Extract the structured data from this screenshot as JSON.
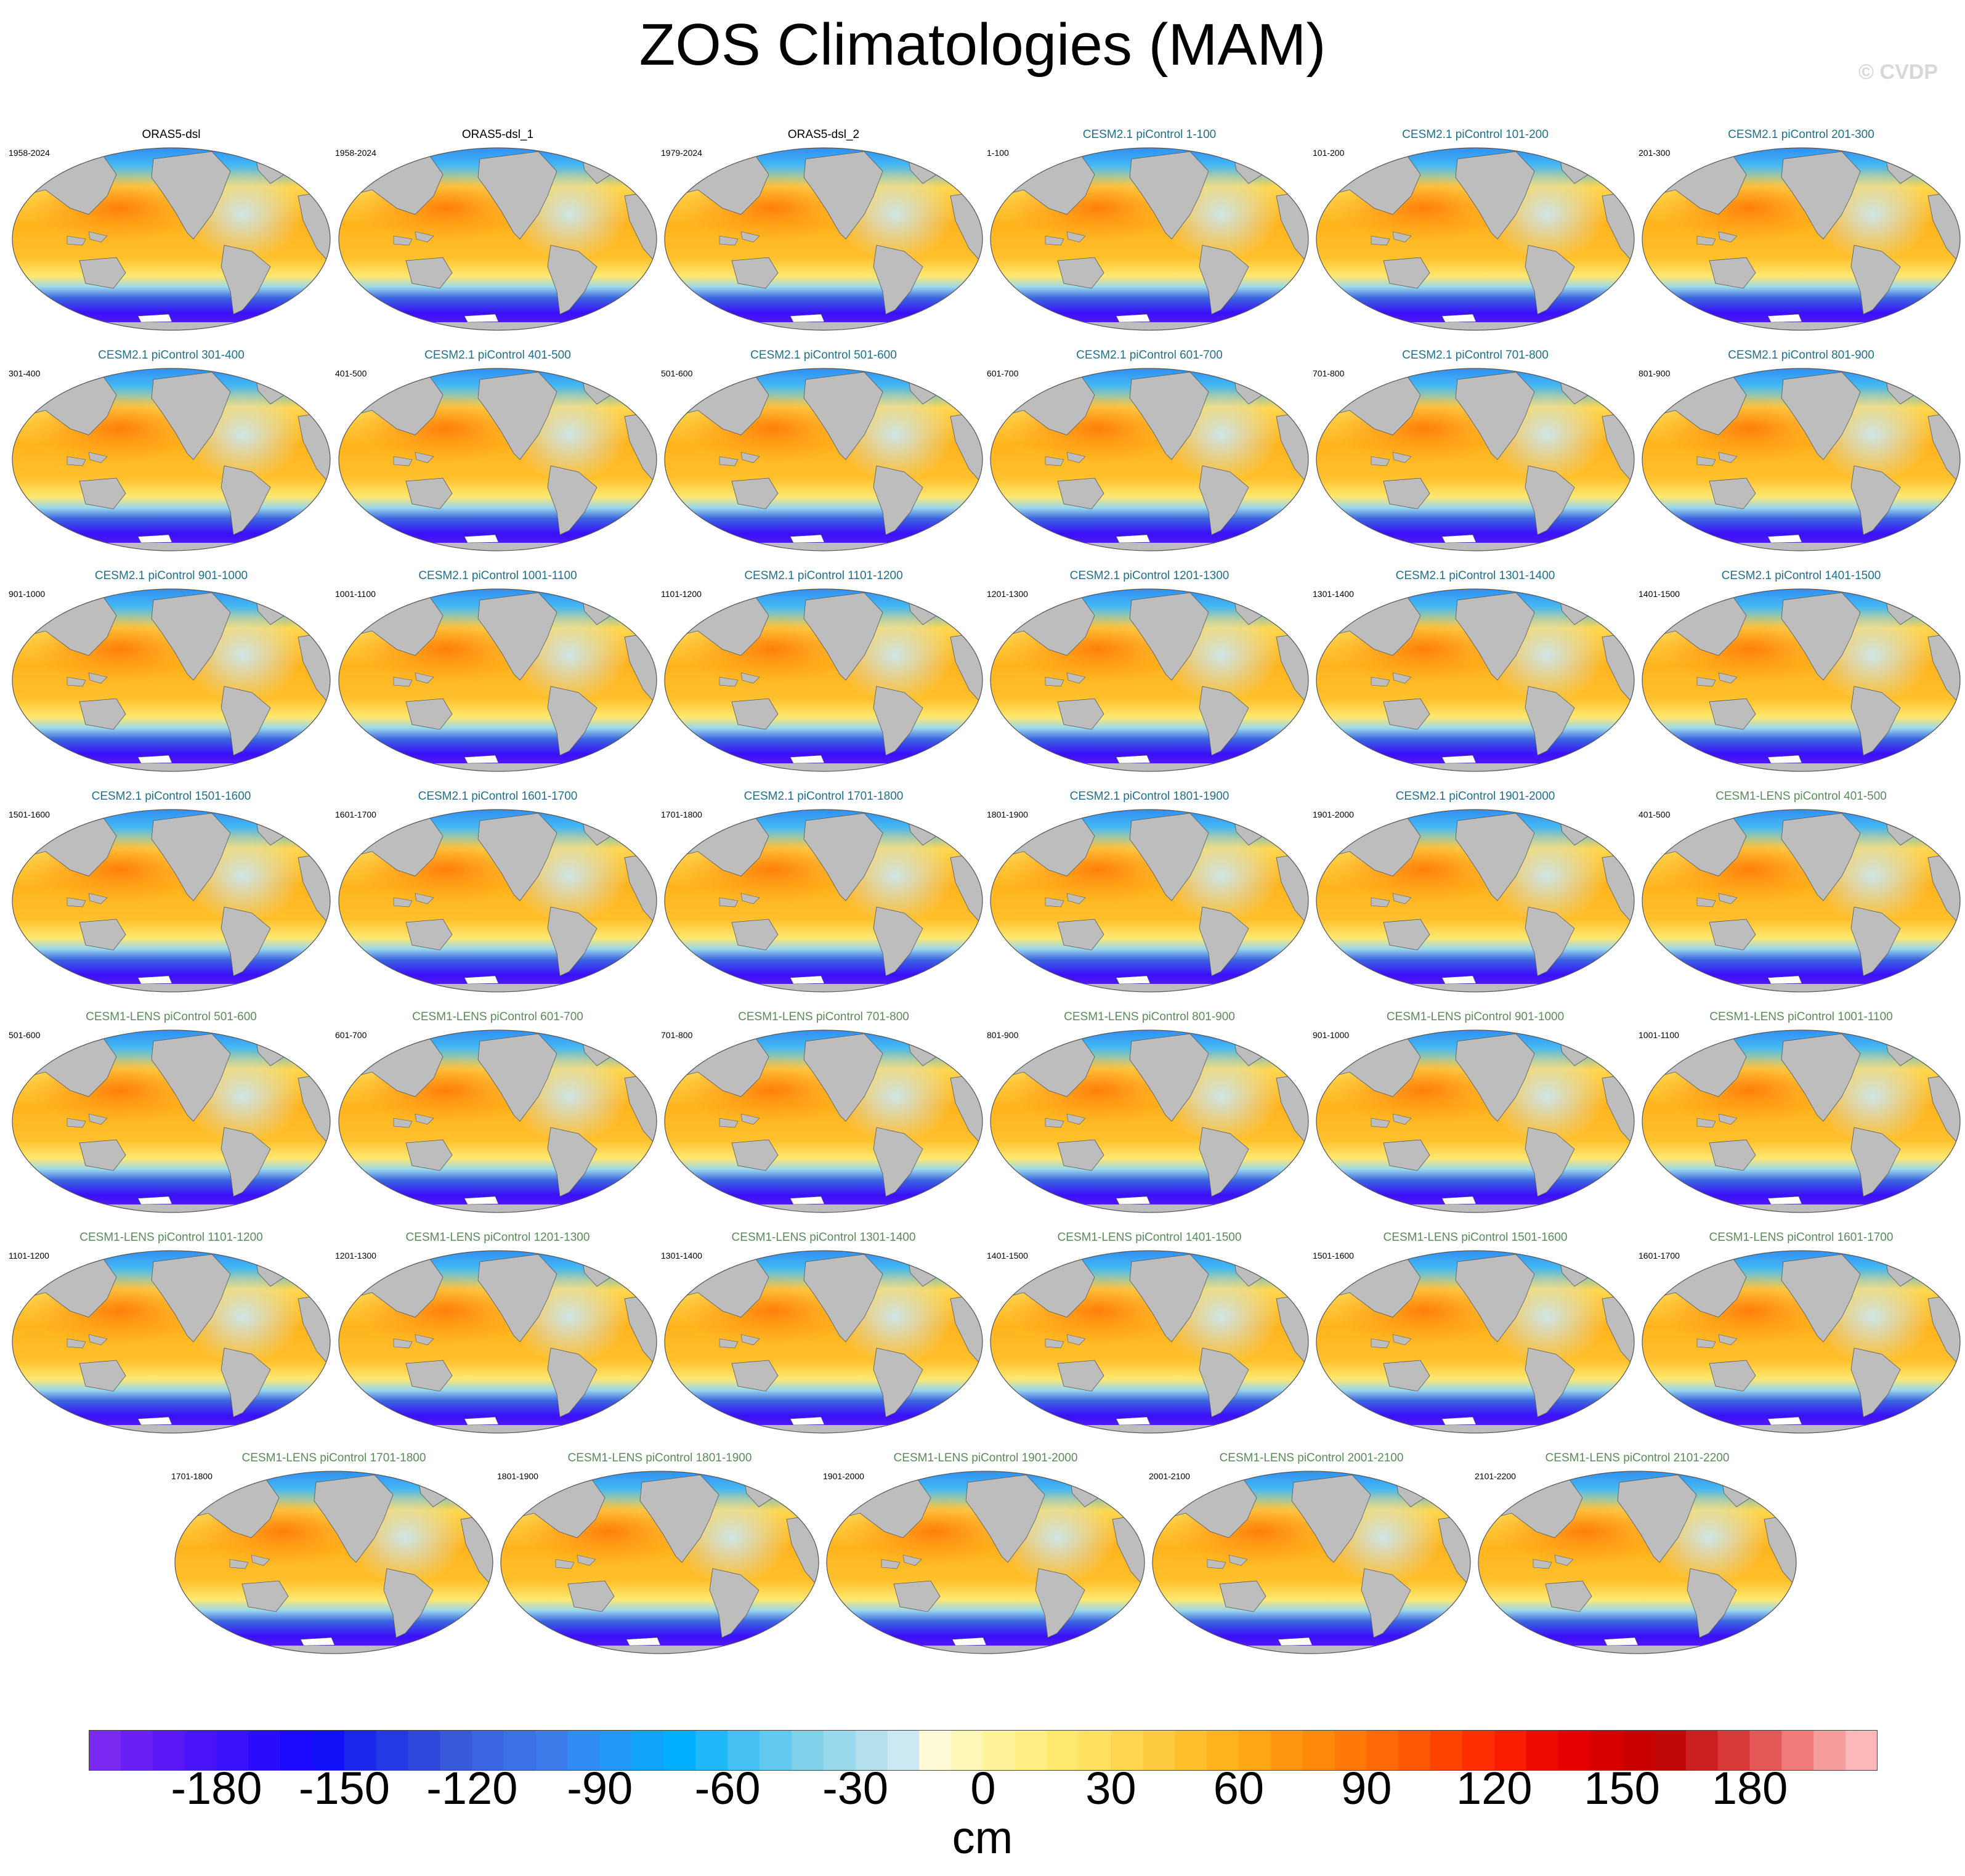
{
  "title": "ZOS Climatologies (MAM)",
  "watermark": "© CVDP",
  "colors": {
    "title_obs": "#000000",
    "title_cesm2": "#1f6f8b",
    "title_cesm1": "#5a8a5a",
    "land": "#bdbdbd",
    "missing": "#ffffff"
  },
  "chart_data": {
    "type": "heatmap",
    "variable": "ZOS",
    "season": "MAM",
    "colorbar": {
      "unit": "cm",
      "min": -210,
      "max": 210,
      "ticks": [
        -180,
        -150,
        -120,
        -90,
        -60,
        -30,
        0,
        30,
        60,
        90,
        120,
        150,
        180
      ],
      "tick_labels": [
        "-180",
        "-150",
        "-120",
        "-90",
        "-60",
        "-30",
        "0",
        "30",
        "60",
        "90",
        "120",
        "150",
        "180"
      ],
      "colors": [
        "#7a2af0",
        "#6a20f4",
        "#5a18f6",
        "#4a14f8",
        "#3a10fa",
        "#2a0cfc",
        "#1a08ff",
        "#1010f6",
        "#1a28ec",
        "#2438e4",
        "#2e48dc",
        "#3858da",
        "#3a64e0",
        "#3c70e6",
        "#3e7cec",
        "#2f8cf2",
        "#2098f6",
        "#10a4fa",
        "#00b0fe",
        "#20b8f8",
        "#44c0f2",
        "#62c8ee",
        "#80d0ea",
        "#9ad8ec",
        "#b4e0ee",
        "#cce8f2",
        "#fffbd8",
        "#fff7b8",
        "#fff39a",
        "#ffef84",
        "#ffe870",
        "#ffe060",
        "#ffd650",
        "#ffcb3e",
        "#ffc02c",
        "#ffb41e",
        "#ffa614",
        "#ff980e",
        "#ff8a0a",
        "#ff7a08",
        "#ff6a06",
        "#ff5804",
        "#ff4402",
        "#ff2e00",
        "#f81c00",
        "#ee0a00",
        "#e40000",
        "#d80000",
        "#ca0000",
        "#be0808",
        "#cc2020",
        "#d83a3a",
        "#e45858",
        "#ee7a7a",
        "#f69e9e",
        "#fcb8b8"
      ]
    },
    "panels": [
      {
        "title": "ORAS5-dsl",
        "years": "1958-2024",
        "group": "obs"
      },
      {
        "title": "ORAS5-dsl_1",
        "years": "1958-2024",
        "group": "obs"
      },
      {
        "title": "ORAS5-dsl_2",
        "years": "1979-2024",
        "group": "obs"
      },
      {
        "title": "CESM2.1 piControl 1-100",
        "years": "1-100",
        "group": "cesm2"
      },
      {
        "title": "CESM2.1 piControl 101-200",
        "years": "101-200",
        "group": "cesm2"
      },
      {
        "title": "CESM2.1 piControl 201-300",
        "years": "201-300",
        "group": "cesm2"
      },
      {
        "title": "CESM2.1 piControl 301-400",
        "years": "301-400",
        "group": "cesm2"
      },
      {
        "title": "CESM2.1 piControl 401-500",
        "years": "401-500",
        "group": "cesm2"
      },
      {
        "title": "CESM2.1 piControl 501-600",
        "years": "501-600",
        "group": "cesm2"
      },
      {
        "title": "CESM2.1 piControl 601-700",
        "years": "601-700",
        "group": "cesm2"
      },
      {
        "title": "CESM2.1 piControl 701-800",
        "years": "701-800",
        "group": "cesm2"
      },
      {
        "title": "CESM2.1 piControl 801-900",
        "years": "801-900",
        "group": "cesm2"
      },
      {
        "title": "CESM2.1 piControl 901-1000",
        "years": "901-1000",
        "group": "cesm2"
      },
      {
        "title": "CESM2.1 piControl 1001-1100",
        "years": "1001-1100",
        "group": "cesm2"
      },
      {
        "title": "CESM2.1 piControl 1101-1200",
        "years": "1101-1200",
        "group": "cesm2"
      },
      {
        "title": "CESM2.1 piControl 1201-1300",
        "years": "1201-1300",
        "group": "cesm2"
      },
      {
        "title": "CESM2.1 piControl 1301-1400",
        "years": "1301-1400",
        "group": "cesm2"
      },
      {
        "title": "CESM2.1 piControl 1401-1500",
        "years": "1401-1500",
        "group": "cesm2"
      },
      {
        "title": "CESM2.1 piControl 1501-1600",
        "years": "1501-1600",
        "group": "cesm2"
      },
      {
        "title": "CESM2.1 piControl 1601-1700",
        "years": "1601-1700",
        "group": "cesm2"
      },
      {
        "title": "CESM2.1 piControl 1701-1800",
        "years": "1701-1800",
        "group": "cesm2"
      },
      {
        "title": "CESM2.1 piControl 1801-1900",
        "years": "1801-1900",
        "group": "cesm2"
      },
      {
        "title": "CESM2.1 piControl 1901-2000",
        "years": "1901-2000",
        "group": "cesm2"
      },
      {
        "title": "CESM1-LENS piControl 401-500",
        "years": "401-500",
        "group": "cesm1"
      },
      {
        "title": "CESM1-LENS piControl 501-600",
        "years": "501-600",
        "group": "cesm1"
      },
      {
        "title": "CESM1-LENS piControl 601-700",
        "years": "601-700",
        "group": "cesm1"
      },
      {
        "title": "CESM1-LENS piControl 701-800",
        "years": "701-800",
        "group": "cesm1"
      },
      {
        "title": "CESM1-LENS piControl 801-900",
        "years": "801-900",
        "group": "cesm1"
      },
      {
        "title": "CESM1-LENS piControl 901-1000",
        "years": "901-1000",
        "group": "cesm1"
      },
      {
        "title": "CESM1-LENS piControl 1001-1100",
        "years": "1001-1100",
        "group": "cesm1"
      },
      {
        "title": "CESM1-LENS piControl 1101-1200",
        "years": "1101-1200",
        "group": "cesm1"
      },
      {
        "title": "CESM1-LENS piControl 1201-1300",
        "years": "1201-1300",
        "group": "cesm1"
      },
      {
        "title": "CESM1-LENS piControl 1301-1400",
        "years": "1301-1400",
        "group": "cesm1"
      },
      {
        "title": "CESM1-LENS piControl 1401-1500",
        "years": "1401-1500",
        "group": "cesm1"
      },
      {
        "title": "CESM1-LENS piControl 1501-1600",
        "years": "1501-1600",
        "group": "cesm1"
      },
      {
        "title": "CESM1-LENS piControl 1601-1700",
        "years": "1601-1700",
        "group": "cesm1"
      },
      {
        "title": "CESM1-LENS piControl 1701-1800",
        "years": "1701-1800",
        "group": "cesm1"
      },
      {
        "title": "CESM1-LENS piControl 1801-1900",
        "years": "1801-1900",
        "group": "cesm1"
      },
      {
        "title": "CESM1-LENS piControl 1901-2000",
        "years": "1901-2000",
        "group": "cesm1"
      },
      {
        "title": "CESM1-LENS piControl 2001-2100",
        "years": "2001-2100",
        "group": "cesm1"
      },
      {
        "title": "CESM1-LENS piControl 2101-2200",
        "years": "2101-2200",
        "group": "cesm1"
      }
    ]
  }
}
